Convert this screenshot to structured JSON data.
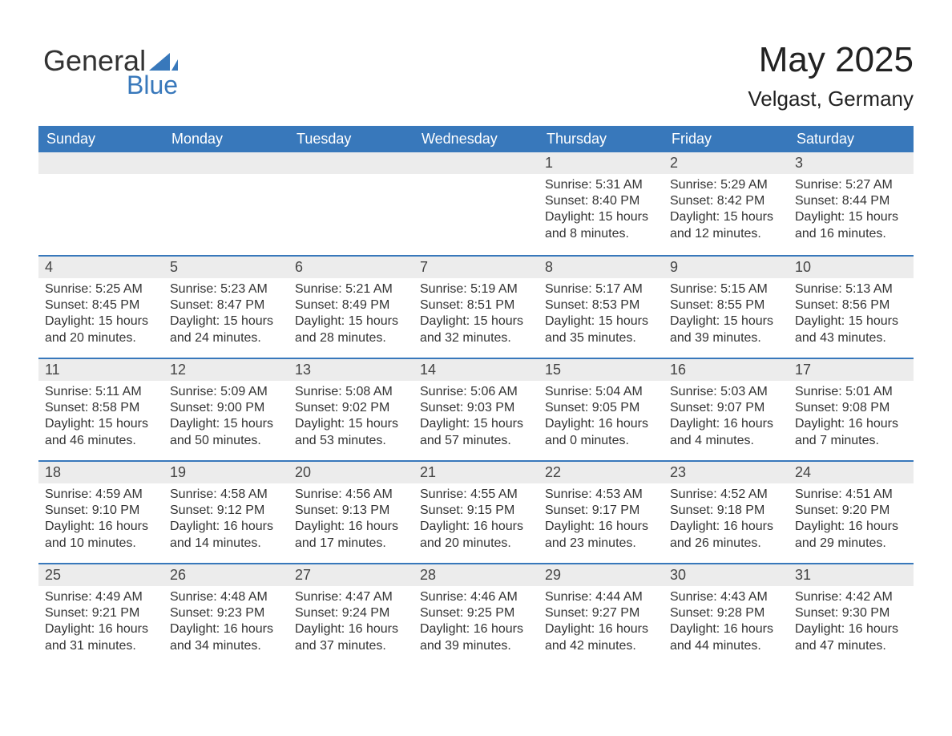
{
  "brand": {
    "word1": "General",
    "word2": "Blue",
    "word1_color": "#333333",
    "word2_color": "#3878bb",
    "icon_color": "#3878bb"
  },
  "header": {
    "month_title": "May 2025",
    "location": "Velgast, Germany"
  },
  "colors": {
    "header_bg": "#3878bb",
    "header_text": "#ffffff",
    "daybar_bg": "#ececec",
    "daybar_border": "#3878bb",
    "body_text": "#333333",
    "page_bg": "#ffffff"
  },
  "weekdays": [
    "Sunday",
    "Monday",
    "Tuesday",
    "Wednesday",
    "Thursday",
    "Friday",
    "Saturday"
  ],
  "weeks": [
    [
      {
        "blank": true
      },
      {
        "blank": true
      },
      {
        "blank": true
      },
      {
        "blank": true
      },
      {
        "day": "1",
        "sunrise": "Sunrise: 5:31 AM",
        "sunset": "Sunset: 8:40 PM",
        "daylight": "Daylight: 15 hours and 8 minutes."
      },
      {
        "day": "2",
        "sunrise": "Sunrise: 5:29 AM",
        "sunset": "Sunset: 8:42 PM",
        "daylight": "Daylight: 15 hours and 12 minutes."
      },
      {
        "day": "3",
        "sunrise": "Sunrise: 5:27 AM",
        "sunset": "Sunset: 8:44 PM",
        "daylight": "Daylight: 15 hours and 16 minutes."
      }
    ],
    [
      {
        "day": "4",
        "sunrise": "Sunrise: 5:25 AM",
        "sunset": "Sunset: 8:45 PM",
        "daylight": "Daylight: 15 hours and 20 minutes."
      },
      {
        "day": "5",
        "sunrise": "Sunrise: 5:23 AM",
        "sunset": "Sunset: 8:47 PM",
        "daylight": "Daylight: 15 hours and 24 minutes."
      },
      {
        "day": "6",
        "sunrise": "Sunrise: 5:21 AM",
        "sunset": "Sunset: 8:49 PM",
        "daylight": "Daylight: 15 hours and 28 minutes."
      },
      {
        "day": "7",
        "sunrise": "Sunrise: 5:19 AM",
        "sunset": "Sunset: 8:51 PM",
        "daylight": "Daylight: 15 hours and 32 minutes."
      },
      {
        "day": "8",
        "sunrise": "Sunrise: 5:17 AM",
        "sunset": "Sunset: 8:53 PM",
        "daylight": "Daylight: 15 hours and 35 minutes."
      },
      {
        "day": "9",
        "sunrise": "Sunrise: 5:15 AM",
        "sunset": "Sunset: 8:55 PM",
        "daylight": "Daylight: 15 hours and 39 minutes."
      },
      {
        "day": "10",
        "sunrise": "Sunrise: 5:13 AM",
        "sunset": "Sunset: 8:56 PM",
        "daylight": "Daylight: 15 hours and 43 minutes."
      }
    ],
    [
      {
        "day": "11",
        "sunrise": "Sunrise: 5:11 AM",
        "sunset": "Sunset: 8:58 PM",
        "daylight": "Daylight: 15 hours and 46 minutes."
      },
      {
        "day": "12",
        "sunrise": "Sunrise: 5:09 AM",
        "sunset": "Sunset: 9:00 PM",
        "daylight": "Daylight: 15 hours and 50 minutes."
      },
      {
        "day": "13",
        "sunrise": "Sunrise: 5:08 AM",
        "sunset": "Sunset: 9:02 PM",
        "daylight": "Daylight: 15 hours and 53 minutes."
      },
      {
        "day": "14",
        "sunrise": "Sunrise: 5:06 AM",
        "sunset": "Sunset: 9:03 PM",
        "daylight": "Daylight: 15 hours and 57 minutes."
      },
      {
        "day": "15",
        "sunrise": "Sunrise: 5:04 AM",
        "sunset": "Sunset: 9:05 PM",
        "daylight": "Daylight: 16 hours and 0 minutes."
      },
      {
        "day": "16",
        "sunrise": "Sunrise: 5:03 AM",
        "sunset": "Sunset: 9:07 PM",
        "daylight": "Daylight: 16 hours and 4 minutes."
      },
      {
        "day": "17",
        "sunrise": "Sunrise: 5:01 AM",
        "sunset": "Sunset: 9:08 PM",
        "daylight": "Daylight: 16 hours and 7 minutes."
      }
    ],
    [
      {
        "day": "18",
        "sunrise": "Sunrise: 4:59 AM",
        "sunset": "Sunset: 9:10 PM",
        "daylight": "Daylight: 16 hours and 10 minutes."
      },
      {
        "day": "19",
        "sunrise": "Sunrise: 4:58 AM",
        "sunset": "Sunset: 9:12 PM",
        "daylight": "Daylight: 16 hours and 14 minutes."
      },
      {
        "day": "20",
        "sunrise": "Sunrise: 4:56 AM",
        "sunset": "Sunset: 9:13 PM",
        "daylight": "Daylight: 16 hours and 17 minutes."
      },
      {
        "day": "21",
        "sunrise": "Sunrise: 4:55 AM",
        "sunset": "Sunset: 9:15 PM",
        "daylight": "Daylight: 16 hours and 20 minutes."
      },
      {
        "day": "22",
        "sunrise": "Sunrise: 4:53 AM",
        "sunset": "Sunset: 9:17 PM",
        "daylight": "Daylight: 16 hours and 23 minutes."
      },
      {
        "day": "23",
        "sunrise": "Sunrise: 4:52 AM",
        "sunset": "Sunset: 9:18 PM",
        "daylight": "Daylight: 16 hours and 26 minutes."
      },
      {
        "day": "24",
        "sunrise": "Sunrise: 4:51 AM",
        "sunset": "Sunset: 9:20 PM",
        "daylight": "Daylight: 16 hours and 29 minutes."
      }
    ],
    [
      {
        "day": "25",
        "sunrise": "Sunrise: 4:49 AM",
        "sunset": "Sunset: 9:21 PM",
        "daylight": "Daylight: 16 hours and 31 minutes."
      },
      {
        "day": "26",
        "sunrise": "Sunrise: 4:48 AM",
        "sunset": "Sunset: 9:23 PM",
        "daylight": "Daylight: 16 hours and 34 minutes."
      },
      {
        "day": "27",
        "sunrise": "Sunrise: 4:47 AM",
        "sunset": "Sunset: 9:24 PM",
        "daylight": "Daylight: 16 hours and 37 minutes."
      },
      {
        "day": "28",
        "sunrise": "Sunrise: 4:46 AM",
        "sunset": "Sunset: 9:25 PM",
        "daylight": "Daylight: 16 hours and 39 minutes."
      },
      {
        "day": "29",
        "sunrise": "Sunrise: 4:44 AM",
        "sunset": "Sunset: 9:27 PM",
        "daylight": "Daylight: 16 hours and 42 minutes."
      },
      {
        "day": "30",
        "sunrise": "Sunrise: 4:43 AM",
        "sunset": "Sunset: 9:28 PM",
        "daylight": "Daylight: 16 hours and 44 minutes."
      },
      {
        "day": "31",
        "sunrise": "Sunrise: 4:42 AM",
        "sunset": "Sunset: 9:30 PM",
        "daylight": "Daylight: 16 hours and 47 minutes."
      }
    ]
  ]
}
